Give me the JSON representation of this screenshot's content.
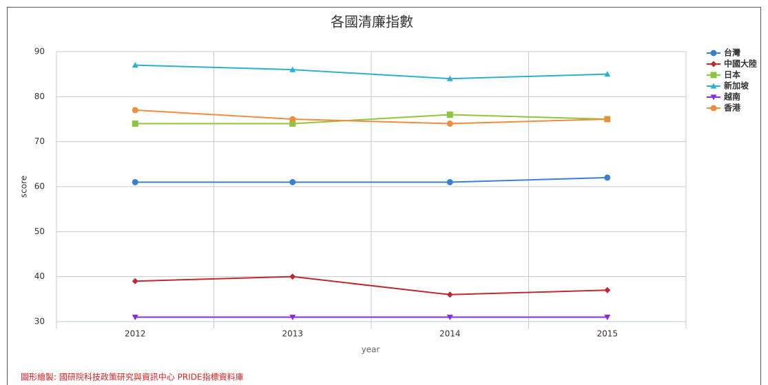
{
  "chart_data": {
    "type": "line",
    "title": "各國清廉指數",
    "x_label": "year",
    "y_label": "score",
    "categories": [
      "2012",
      "2013",
      "2014",
      "2015"
    ],
    "series": [
      {
        "name": "台灣",
        "color": "#3a7fd5",
        "marker": "circle",
        "values": [
          61,
          61,
          61,
          62
        ]
      },
      {
        "name": "中國大陸",
        "color": "#c0282d",
        "marker": "diamond",
        "values": [
          39,
          40,
          36,
          37
        ]
      },
      {
        "name": "日本",
        "color": "#8cc63f",
        "marker": "square",
        "values": [
          74,
          74,
          76,
          75
        ]
      },
      {
        "name": "新加坡",
        "color": "#2ab0d0",
        "marker": "triangle",
        "values": [
          87,
          86,
          84,
          85
        ]
      },
      {
        "name": "越南",
        "color": "#8a2be2",
        "marker": "triangle-down",
        "values": [
          31,
          31,
          31,
          31
        ]
      },
      {
        "name": "香港",
        "color": "#f08c3c",
        "marker": "circle",
        "values": [
          77,
          75,
          74,
          75
        ]
      }
    ],
    "ylim": [
      30,
      90
    ],
    "yticks": [
      30,
      40,
      50,
      60,
      70,
      80,
      90
    ],
    "grid": true,
    "legend": "right",
    "source": "圖形繪製: 國研院科技政策研究與資訊中心 PRIDE指標資料庫"
  }
}
